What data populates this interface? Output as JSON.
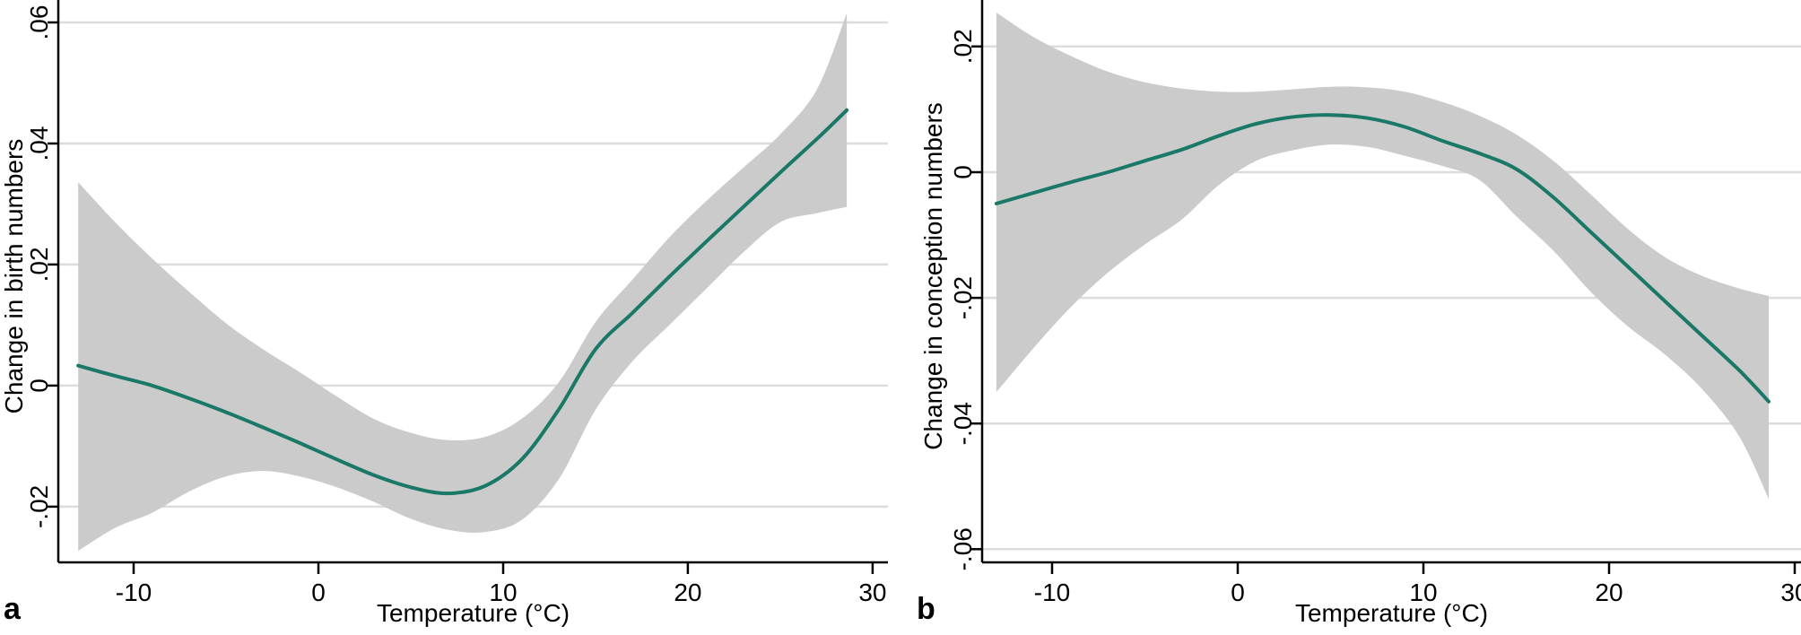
{
  "figure": {
    "background": "#ffffff"
  },
  "colors": {
    "line": "#1a7866",
    "band": "#cbcbcb",
    "grid": "#dcdcdc",
    "axis": "#000000",
    "text": "#000000"
  },
  "chart_data": [
    {
      "type": "line",
      "panel_label": "a",
      "x_label": "Temperature (°C)",
      "y_label": "Change in birth numbers",
      "legend": "none",
      "grid": "horizontal",
      "xlim": [
        -14.08,
        30.83
      ],
      "ylim": [
        -0.0292,
        0.0637
      ],
      "x_ticks": [
        {
          "v": -10,
          "label": "-10"
        },
        {
          "v": 0,
          "label": "0"
        },
        {
          "v": 10,
          "label": "10"
        },
        {
          "v": 20,
          "label": "20"
        },
        {
          "v": 30,
          "label": "30"
        }
      ],
      "y_ticks": [
        {
          "v": 0.06,
          "label": ".06"
        },
        {
          "v": 0.04,
          "label": ".04"
        },
        {
          "v": 0.02,
          "label": ".02"
        },
        {
          "v": 0.0,
          "label": "0"
        },
        {
          "v": -0.02,
          "label": "-.02"
        }
      ],
      "x": [
        -13,
        -11,
        -9,
        -7,
        -5,
        -3,
        -1,
        1,
        3,
        5,
        7,
        9,
        11,
        13,
        15,
        17,
        19,
        21,
        23,
        25,
        27,
        28.6
      ],
      "series": [
        {
          "name": "estimated change in birth numbers",
          "values": [
            0.0033,
            0.0016,
            0.0,
            -0.0021,
            -0.0044,
            -0.0069,
            -0.0095,
            -0.0122,
            -0.0148,
            -0.0168,
            -0.0178,
            -0.0166,
            -0.0122,
            -0.004,
            0.006,
            0.012,
            0.018,
            0.0238,
            0.0295,
            0.0352,
            0.0408,
            0.0455
          ]
        }
      ],
      "band": {
        "name": "confidence interval",
        "upper": [
          0.0336,
          0.027,
          0.021,
          0.0155,
          0.0103,
          0.006,
          0.0022,
          -0.0018,
          -0.0055,
          -0.0078,
          -0.009,
          -0.0085,
          -0.0055,
          0.0005,
          0.0105,
          0.0175,
          0.0245,
          0.0305,
          0.036,
          0.0415,
          0.049,
          0.0615
        ],
        "lower": [
          -0.0273,
          -0.0235,
          -0.021,
          -0.0175,
          -0.015,
          -0.0141,
          -0.015,
          -0.0168,
          -0.0192,
          -0.022,
          -0.0238,
          -0.0242,
          -0.0222,
          -0.0155,
          -0.004,
          0.004,
          0.01,
          0.016,
          0.022,
          0.027,
          0.0285,
          0.0295
        ]
      }
    },
    {
      "type": "line",
      "panel_label": "b",
      "x_label": "Temperature (°C)",
      "y_label": "Change in conception numbers",
      "legend": "none",
      "grid": "horizontal",
      "xlim": [
        -13.77,
        30.34
      ],
      "ylim": [
        -0.0621,
        0.0274
      ],
      "x_ticks": [
        {
          "v": -10,
          "label": "-10"
        },
        {
          "v": 0,
          "label": "0"
        },
        {
          "v": 10,
          "label": "10"
        },
        {
          "v": 20,
          "label": "20"
        },
        {
          "v": 30,
          "label": "30"
        }
      ],
      "y_ticks": [
        {
          "v": 0.02,
          "label": ".02"
        },
        {
          "v": 0.0,
          "label": "0"
        },
        {
          "v": -0.02,
          "label": "-.02"
        },
        {
          "v": -0.04,
          "label": "-.04"
        },
        {
          "v": -0.06,
          "label": "-.06"
        }
      ],
      "x": [
        -13,
        -11,
        -9,
        -7,
        -5,
        -3,
        -1,
        1,
        3,
        5,
        7,
        9,
        11,
        13,
        15,
        17,
        19,
        21,
        23,
        25,
        27,
        28.6
      ],
      "series": [
        {
          "name": "estimated change in conception numbers",
          "values": [
            -0.005,
            -0.0033,
            -0.0016,
            0.0,
            0.0018,
            0.0036,
            0.0058,
            0.0077,
            0.0088,
            0.0091,
            0.0086,
            0.0072,
            0.005,
            0.003,
            0.0005,
            -0.004,
            -0.0095,
            -0.015,
            -0.0205,
            -0.026,
            -0.0315,
            -0.0365
          ]
        }
      ],
      "band": {
        "name": "confidence interval",
        "upper": [
          0.0254,
          0.0215,
          0.0185,
          0.016,
          0.0143,
          0.0133,
          0.0128,
          0.0128,
          0.0132,
          0.0136,
          0.0135,
          0.0128,
          0.0112,
          0.009,
          0.006,
          0.0018,
          -0.0035,
          -0.009,
          -0.0135,
          -0.0165,
          -0.0185,
          -0.0197
        ],
        "lower": [
          -0.035,
          -0.028,
          -0.0215,
          -0.016,
          -0.0115,
          -0.0075,
          -0.002,
          0.0018,
          0.0035,
          0.0044,
          0.004,
          0.0026,
          0.001,
          -0.0012,
          -0.007,
          -0.0125,
          -0.019,
          -0.0245,
          -0.029,
          -0.0345,
          -0.042,
          -0.052
        ]
      }
    }
  ]
}
